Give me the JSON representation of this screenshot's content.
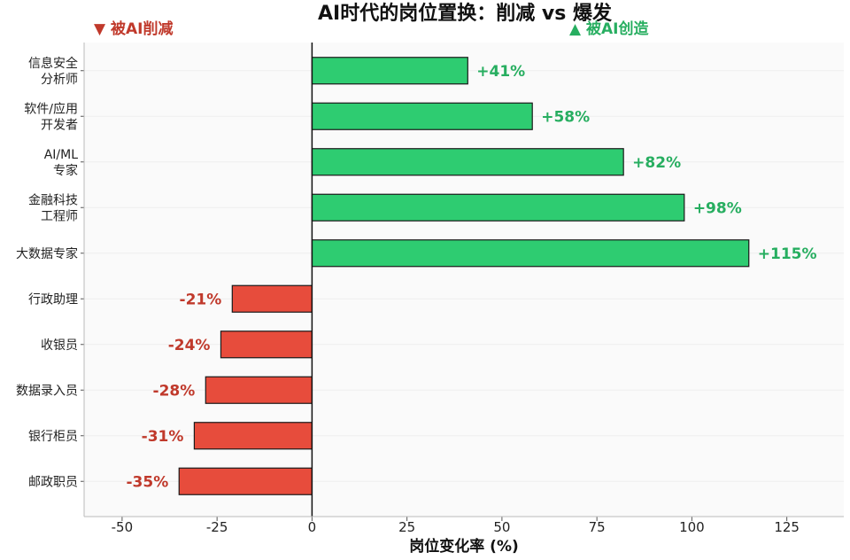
{
  "chart_data": {
    "type": "bar",
    "orientation": "horizontal",
    "title": "AI时代的岗位置换：削减 vs 爆发",
    "xlabel": "岗位变化率 (%)",
    "ylabel": "",
    "xlim": [
      -60,
      140
    ],
    "xticks": [
      -50,
      -25,
      0,
      25,
      50,
      75,
      100,
      125
    ],
    "legend_left": "▼ 被AI削减",
    "legend_right": "▲ 被AI创造",
    "categories": [
      [
        "信息安全",
        "分析师"
      ],
      [
        "软件/应用",
        "开发者"
      ],
      [
        "AI/ML",
        "专家"
      ],
      [
        "金融科技",
        "工程师"
      ],
      [
        "大数据专家"
      ],
      [
        "行政助理"
      ],
      [
        "收银员"
      ],
      [
        "数据录入员"
      ],
      [
        "银行柜员"
      ],
      [
        "邮政职员"
      ]
    ],
    "values": [
      41,
      58,
      82,
      98,
      115,
      -21,
      -24,
      -28,
      -31,
      -35
    ],
    "data_labels": [
      "+41%",
      "+58%",
      "+82%",
      "+98%",
      "+115%",
      "-21%",
      "-24%",
      "-28%",
      "-31%",
      "-35%"
    ],
    "colors": {
      "positive_bar": "#2ecc71",
      "negative_bar": "#e74c3c",
      "positive_text": "#27ae60",
      "negative_text": "#c0392b",
      "edge": "#1a1a1a",
      "plot_bg": "#fafafa"
    },
    "grid": "horizontal-light"
  }
}
